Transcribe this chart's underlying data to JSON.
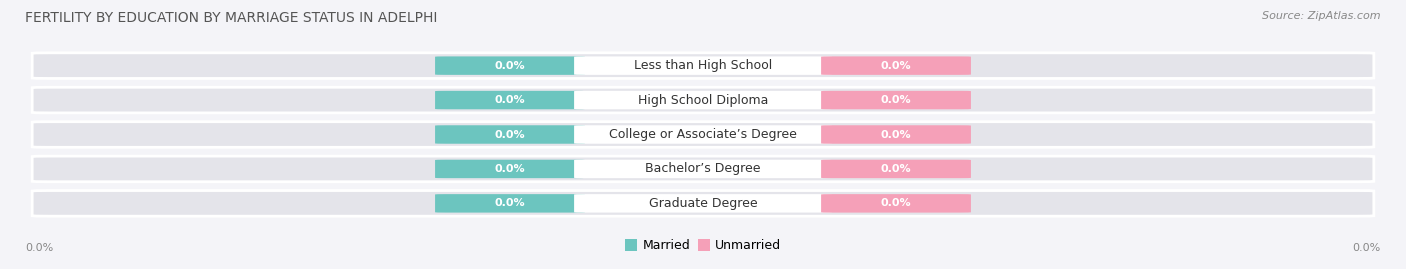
{
  "title": "FERTILITY BY EDUCATION BY MARRIAGE STATUS IN ADELPHI",
  "source": "Source: ZipAtlas.com",
  "categories": [
    "Less than High School",
    "High School Diploma",
    "College or Associate’s Degree",
    "Bachelor’s Degree",
    "Graduate Degree"
  ],
  "married_values": [
    "0.0%",
    "0.0%",
    "0.0%",
    "0.0%",
    "0.0%"
  ],
  "unmarried_values": [
    "0.0%",
    "0.0%",
    "0.0%",
    "0.0%",
    "0.0%"
  ],
  "married_color": "#6cc5bf",
  "unmarried_color": "#f5a0b8",
  "bar_bg_color": "#e4e4ea",
  "bar_bg_edge": "#d0d0d8",
  "category_box_color": "#ffffff",
  "title_color": "#555555",
  "source_color": "#888888",
  "tick_color": "#888888",
  "category_color": "#333333",
  "label_color": "#ffffff",
  "background_color": "#f4f4f8",
  "title_fontsize": 10,
  "source_fontsize": 8,
  "label_fontsize": 8,
  "category_fontsize": 9,
  "legend_fontsize": 9,
  "axis_label_left": "0.0%",
  "axis_label_right": "0.0%",
  "legend_married": "Married",
  "legend_unmarried": "Unmarried"
}
